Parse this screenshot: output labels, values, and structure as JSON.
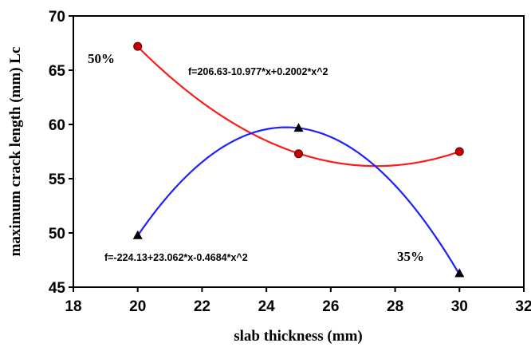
{
  "chart_data": {
    "type": "line",
    "xlabel": "slab thickness (mm)",
    "ylabel": "maximum crack length (mm) Lc",
    "xlim": [
      18,
      32
    ],
    "ylim": [
      45,
      70
    ],
    "xticks": [
      18,
      20,
      22,
      24,
      26,
      28,
      30,
      32
    ],
    "yticks": [
      45,
      50,
      55,
      60,
      65,
      70
    ],
    "grid": false,
    "series": [
      {
        "name": "50%",
        "color": "#ff1a1a",
        "marker": "circle",
        "marker_color": "#cc0000",
        "x": [
          20,
          25,
          30
        ],
        "values": [
          67.2,
          57.3,
          57.5
        ],
        "fit": {
          "c0": 206.63,
          "c1": -10.977,
          "c2": 0.2002
        }
      },
      {
        "name": "35%",
        "color": "#1f1fff",
        "marker": "triangle",
        "marker_color": "#000000",
        "x": [
          20,
          25,
          30
        ],
        "values": [
          49.8,
          59.7,
          46.3
        ],
        "fit": {
          "c0": -224.13,
          "c1": 23.062,
          "c2": -0.4684
        }
      }
    ],
    "annotations": {
      "label_50": "50%",
      "label_35": "35%",
      "eq_50": "f=206.63-10.977*x+0.2002*x^2",
      "eq_35": "f=-224.13+23.062*x-0.4684*x^2"
    }
  }
}
